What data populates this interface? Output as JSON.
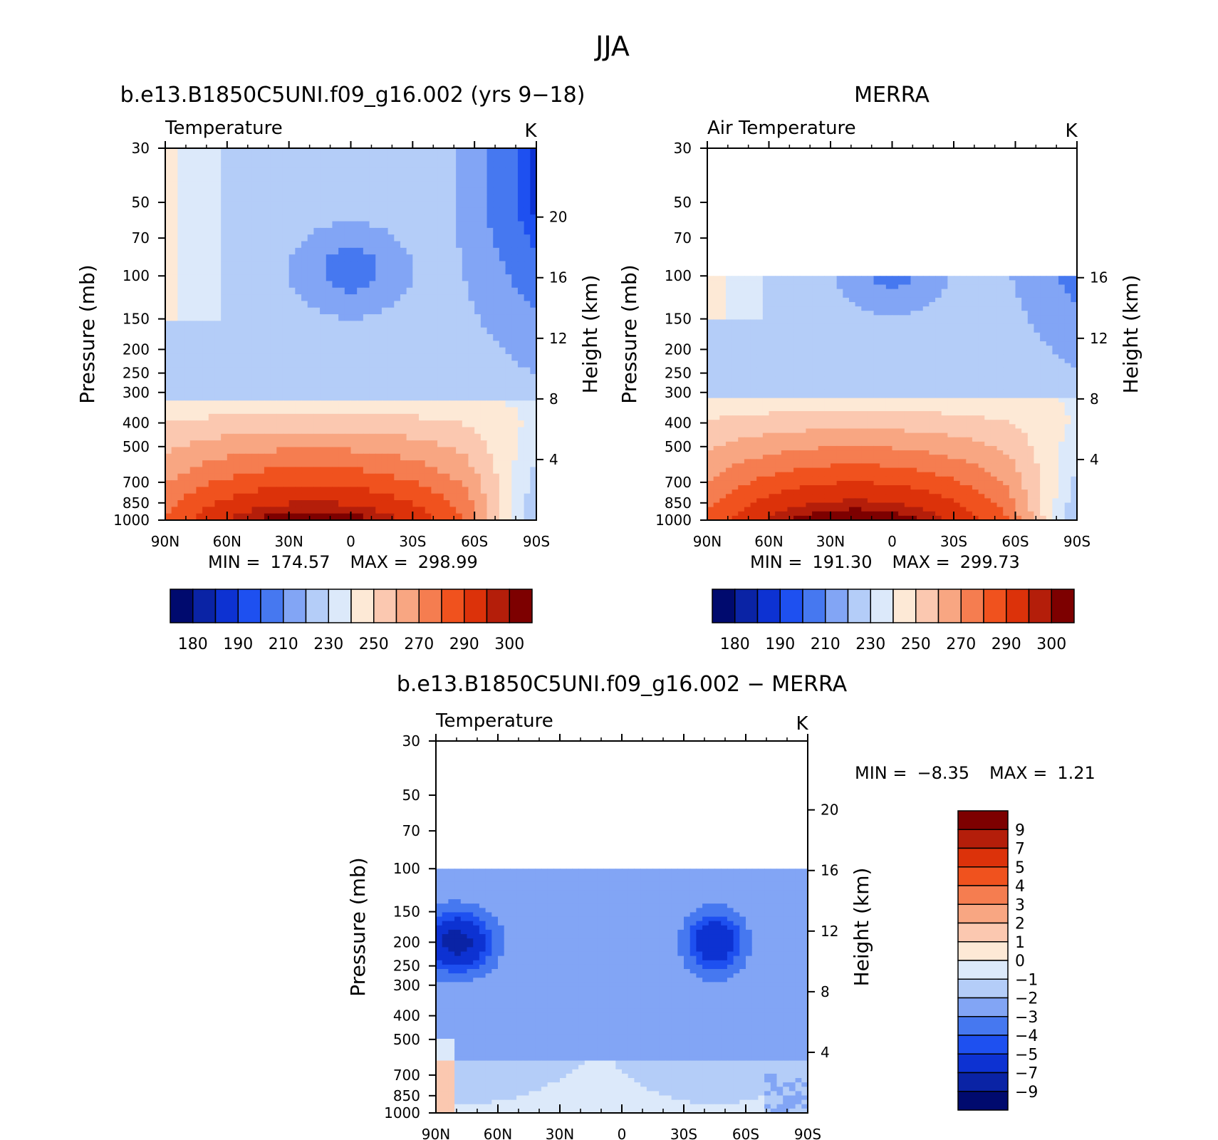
{
  "figure": {
    "title": "JJA"
  },
  "chart_data": [
    {
      "type": "heatmap",
      "id": "model",
      "title": "b.e13.B1850C5UNI.f09_g16.002 (yrs 9−18)",
      "subtitle": "Temperature",
      "units": "K",
      "xlabel": "",
      "ylabel": "Pressure (mb)",
      "y2label": "Height (km)",
      "x_ticks": [
        "90N",
        "60N",
        "30N",
        "0",
        "30S",
        "60S",
        "90S"
      ],
      "x_values": [
        90,
        60,
        30,
        0,
        -30,
        -60,
        -90
      ],
      "y_ticks": [
        "30",
        "50",
        "70",
        "100",
        "150",
        "200",
        "250",
        "300",
        "400",
        "500",
        "700",
        "850",
        "1000"
      ],
      "y_values": [
        30,
        50,
        70,
        100,
        150,
        200,
        250,
        300,
        400,
        500,
        700,
        850,
        1000
      ],
      "y2_ticks": [
        "4",
        "8",
        "12",
        "16",
        "20"
      ],
      "y2_values": [
        4,
        8,
        12,
        16,
        20
      ],
      "ylim": [
        30,
        1000
      ],
      "yscale": "log",
      "data_top": 30,
      "min_label": "MIN =",
      "min_value": "174.57",
      "max_label": "MAX =",
      "max_value": "298.99",
      "colorbar": {
        "orientation": "horizontal",
        "labels": [
          "180",
          "190",
          "210",
          "230",
          "250",
          "270",
          "290",
          "300"
        ],
        "colors": [
          "#000a6e",
          "#0a23a5",
          "#0d32d2",
          "#1e50f0",
          "#4678f0",
          "#82a5f5",
          "#b4cdf8",
          "#dce9fa",
          "#fde9d6",
          "#fbc8b0",
          "#f8a682",
          "#f57d50",
          "#f0521e",
          "#dc320a",
          "#b41e0a",
          "#7d0000"
        ]
      }
    },
    {
      "type": "heatmap",
      "id": "obs",
      "title": "MERRA",
      "subtitle": "Air Temperature",
      "units": "K",
      "xlabel": "",
      "ylabel": "Pressure (mb)",
      "y2label": "Height (km)",
      "x_ticks": [
        "90N",
        "60N",
        "30N",
        "0",
        "30S",
        "60S",
        "90S"
      ],
      "x_values": [
        90,
        60,
        30,
        0,
        -30,
        -60,
        -90
      ],
      "y_ticks": [
        "30",
        "50",
        "70",
        "100",
        "150",
        "200",
        "250",
        "300",
        "400",
        "500",
        "700",
        "850",
        "1000"
      ],
      "y_values": [
        30,
        50,
        70,
        100,
        150,
        200,
        250,
        300,
        400,
        500,
        700,
        850,
        1000
      ],
      "y2_ticks": [
        "4",
        "8",
        "12",
        "16"
      ],
      "y2_values": [
        4,
        8,
        12,
        16
      ],
      "ylim": [
        30,
        1000
      ],
      "yscale": "log",
      "data_top": 100,
      "min_label": "MIN =",
      "min_value": "191.30",
      "max_label": "MAX =",
      "max_value": "299.73",
      "colorbar": {
        "orientation": "horizontal",
        "labels": [
          "180",
          "190",
          "210",
          "230",
          "250",
          "270",
          "290",
          "300"
        ],
        "colors": [
          "#000a6e",
          "#0a23a5",
          "#0d32d2",
          "#1e50f0",
          "#4678f0",
          "#82a5f5",
          "#b4cdf8",
          "#dce9fa",
          "#fde9d6",
          "#fbc8b0",
          "#f8a682",
          "#f57d50",
          "#f0521e",
          "#dc320a",
          "#b41e0a",
          "#7d0000"
        ]
      }
    },
    {
      "type": "heatmap",
      "id": "diff",
      "title": "b.e13.B1850C5UNI.f09_g16.002 − MERRA",
      "subtitle": "Temperature",
      "units": "K",
      "xlabel": "",
      "ylabel": "Pressure (mb)",
      "y2label": "Height (km)",
      "x_ticks": [
        "90N",
        "60N",
        "30N",
        "0",
        "30S",
        "60S",
        "90S"
      ],
      "x_values": [
        90,
        60,
        30,
        0,
        -30,
        -60,
        -90
      ],
      "y_ticks": [
        "30",
        "50",
        "70",
        "100",
        "150",
        "200",
        "250",
        "300",
        "400",
        "500",
        "700",
        "850",
        "1000"
      ],
      "y_values": [
        30,
        50,
        70,
        100,
        150,
        200,
        250,
        300,
        400,
        500,
        700,
        850,
        1000
      ],
      "y2_ticks": [
        "4",
        "8",
        "12",
        "16",
        "20"
      ],
      "y2_values": [
        4,
        8,
        12,
        16,
        20
      ],
      "ylim": [
        30,
        1000
      ],
      "yscale": "log",
      "data_top": 100,
      "min_label": "MIN =",
      "min_value": "−8.35",
      "max_label": "MAX =",
      "max_value": "1.21",
      "colorbar": {
        "orientation": "vertical",
        "labels": [
          "9",
          "7",
          "5",
          "4",
          "3",
          "2",
          "1",
          "0",
          "−1",
          "−2",
          "−3",
          "−4",
          "−5",
          "−7",
          "−9"
        ],
        "colors": [
          "#7d0000",
          "#b41e0a",
          "#dc320a",
          "#f0521e",
          "#f57d50",
          "#f8a682",
          "#fbc8b0",
          "#fde9d6",
          "#dce9fa",
          "#b4cdf8",
          "#82a5f5",
          "#4678f0",
          "#1e50f0",
          "#0d32d2",
          "#0a23a5",
          "#000a6e"
        ]
      }
    }
  ]
}
